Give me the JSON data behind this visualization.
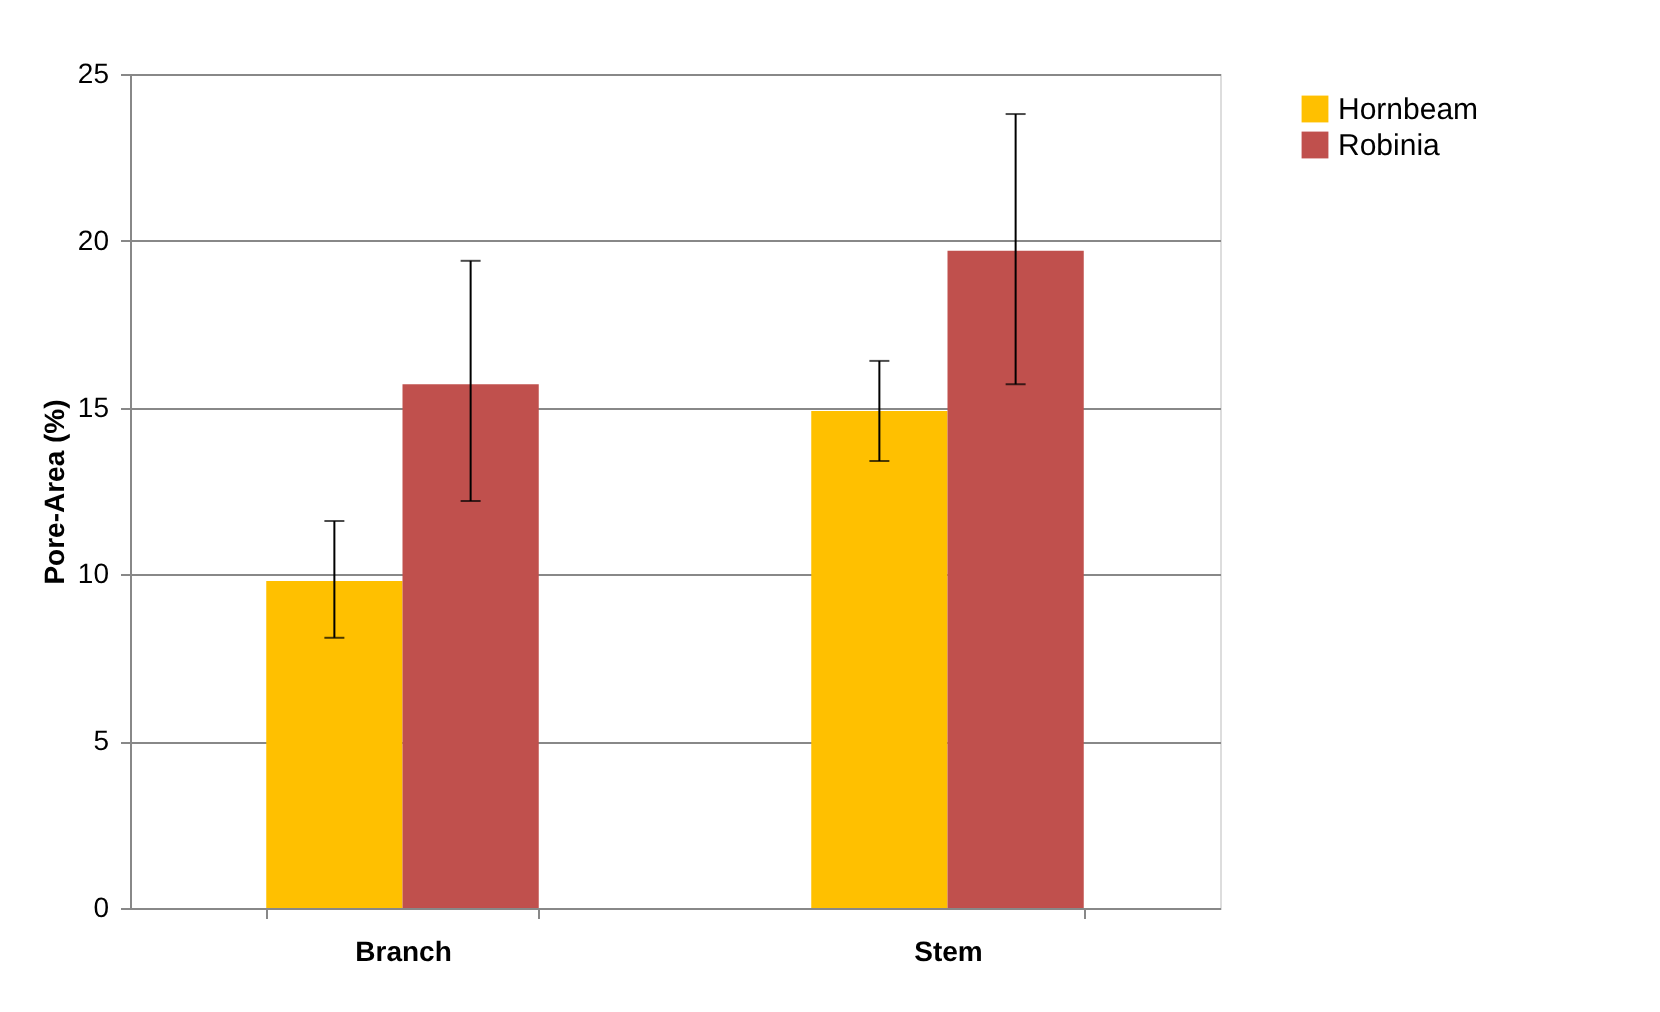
{
  "chart_data": {
    "type": "bar",
    "ylabel": "Pore-Area (%)",
    "categories": [
      "Branch",
      "Stem"
    ],
    "series": [
      {
        "name": "Hornbeam",
        "color": "#ffc000",
        "values": [
          9.8,
          14.9
        ],
        "errors": [
          [
            8.1,
            11.6
          ],
          [
            13.4,
            16.4
          ]
        ]
      },
      {
        "name": "Robinia",
        "color": "#c0504d",
        "values": [
          15.7,
          19.7
        ],
        "errors": [
          [
            12.2,
            19.4
          ],
          [
            15.7,
            23.8
          ]
        ]
      }
    ],
    "ylim": [
      0,
      25
    ],
    "yticks": [
      0,
      5,
      10,
      15,
      20,
      25
    ],
    "grid": "y",
    "legend": "right"
  }
}
